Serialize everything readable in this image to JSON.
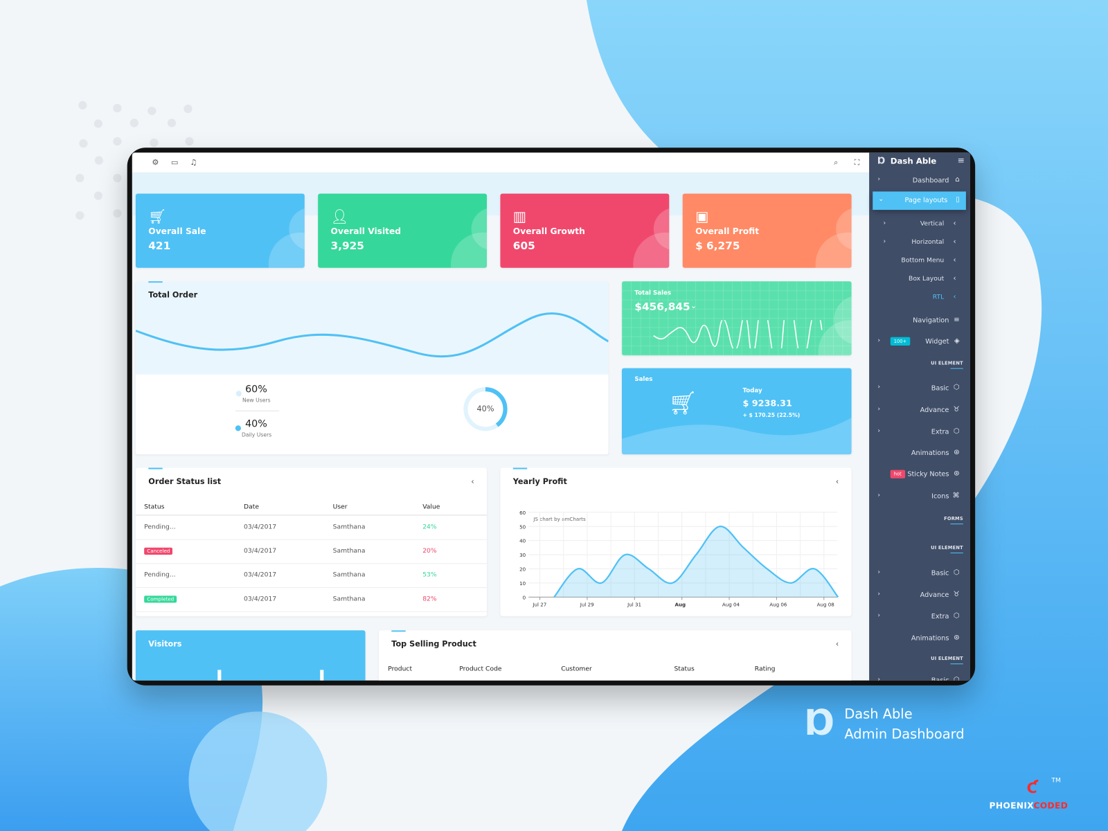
{
  "colors": {
    "blue": "#4fc1f5",
    "green": "#35d89a",
    "red": "#f0486c",
    "orange": "#ff8a65",
    "sidebar": "#3f4d67",
    "green_light": "#5ae0ac"
  },
  "topbar": {
    "left_icons": [
      "gear-icon",
      "message-icon",
      "bell-icon"
    ],
    "right_icons": [
      "search-icon",
      "fullscreen-icon"
    ]
  },
  "stats": [
    {
      "title": "Overall Sale",
      "value": "421",
      "icon": "cart-icon",
      "color": "#4fc1f5"
    },
    {
      "title": "Overall Visited",
      "value": "3,925",
      "icon": "user-icon",
      "color": "#35d89a"
    },
    {
      "title": "Overall Growth",
      "value": "605",
      "icon": "bar-chart-icon",
      "color": "#f0486c"
    },
    {
      "title": "Overall Profit",
      "value": "$ 6,275",
      "icon": "money-icon",
      "color": "#ff8a65"
    }
  ],
  "total_order": {
    "title": "Total Order",
    "new_users": {
      "value": "60%",
      "label": "New Users"
    },
    "daily_users": {
      "value": "40%",
      "label": "Daily Users"
    },
    "donut": {
      "label": "40%",
      "percent": 40
    }
  },
  "total_sales": {
    "title": "Total Sales",
    "value": "$456,845"
  },
  "sales": {
    "title": "Sales",
    "today_label": "Today",
    "today_value": "$ 9238.31",
    "change": "+ $ 170.25 (22.5%)"
  },
  "order_status": {
    "title": "Order Status list",
    "columns": [
      "Status",
      "Date",
      "User",
      "Value"
    ],
    "rows": [
      {
        "status": "Pending...",
        "badge": null,
        "date": "03/4/2017",
        "user": "Samthana",
        "value": "24%",
        "value_color": "#35d89a"
      },
      {
        "status": "Canceled",
        "badge": "#f0486c",
        "date": "03/4/2017",
        "user": "Samthana",
        "value": "20%",
        "value_color": "#f0486c"
      },
      {
        "status": "Pending...",
        "badge": null,
        "date": "03/4/2017",
        "user": "Samthana",
        "value": "53%",
        "value_color": "#35d89a"
      },
      {
        "status": "Completed",
        "badge": "#35d89a",
        "date": "03/4/2017",
        "user": "Samthana",
        "value": "82%",
        "value_color": "#f0486c"
      }
    ]
  },
  "yearly_profit": {
    "title": "Yearly Profit",
    "credit": "JS chart by amCharts"
  },
  "chart_data": {
    "type": "area",
    "title": "Yearly Profit",
    "ylim": [
      0,
      60
    ],
    "yticks": [
      0,
      10,
      20,
      30,
      40,
      50,
      60
    ],
    "xticks": [
      "Jul 27",
      "Jul 29",
      "Jul 31",
      "Aug",
      "Aug 04",
      "Aug 06",
      "Aug 08"
    ],
    "x": [
      "Jul 27",
      "Jul 28",
      "Jul 29",
      "Jul 30",
      "Jul 31",
      "Aug 01",
      "Aug 02",
      "Aug 03",
      "Aug 04",
      "Aug 05",
      "Aug 06",
      "Aug 07",
      "Aug 08"
    ],
    "values": [
      0,
      20,
      10,
      30,
      20,
      10,
      30,
      50,
      35,
      20,
      10,
      20,
      0
    ],
    "grid": true,
    "color": "#4fc1f5"
  },
  "visitors": {
    "title": "Visitors"
  },
  "top_selling": {
    "title": "Top Selling Product",
    "columns": [
      "Product",
      "Product Code",
      "Customer",
      "Status",
      "Rating"
    ]
  },
  "sidebar": {
    "brand": "Dash Able",
    "items": [
      {
        "kind": "item",
        "label": "Dashboard",
        "icon": "home-icon",
        "glyph": "⌂",
        "chev": true
      },
      {
        "kind": "active",
        "label": "Page layouts",
        "icon": "layout-icon",
        "glyph": "▯",
        "chev": true
      },
      {
        "kind": "sub",
        "label": "Vertical",
        "chev": true
      },
      {
        "kind": "sub",
        "label": "Horizontal",
        "chev": true
      },
      {
        "kind": "sub",
        "label": "Bottom Menu"
      },
      {
        "kind": "sub",
        "label": "Box Layout"
      },
      {
        "kind": "sub",
        "label": "RTL",
        "highlight": true
      },
      {
        "kind": "item",
        "label": "Navigation",
        "icon": "menu-icon",
        "glyph": "≡"
      },
      {
        "kind": "item",
        "label": "Widget",
        "icon": "layers-icon",
        "glyph": "◈",
        "chev": true,
        "badge": "100+",
        "badge_color": "#00bcd4"
      },
      {
        "kind": "cap",
        "label": "UI ELEMENT"
      },
      {
        "kind": "item",
        "label": "Basic",
        "icon": "box-icon",
        "glyph": "⬡",
        "chev": true
      },
      {
        "kind": "item",
        "label": "Advance",
        "icon": "gitlab-icon",
        "glyph": "♉",
        "chev": true
      },
      {
        "kind": "item",
        "label": "Extra",
        "icon": "box-icon",
        "glyph": "⬡",
        "chev": true
      },
      {
        "kind": "item",
        "label": "Animations",
        "icon": "aperture-icon",
        "glyph": "⊛"
      },
      {
        "kind": "item",
        "label": "Sticky Notes",
        "icon": "aperture-icon",
        "glyph": "⊛",
        "badge": "hot",
        "badge_color": "#f0486c"
      },
      {
        "kind": "item",
        "label": "Icons",
        "icon": "command-icon",
        "glyph": "⌘",
        "chev": true
      },
      {
        "kind": "cap",
        "label": "FORMS"
      },
      {
        "kind": "cap",
        "label": "UI ELEMENT"
      },
      {
        "kind": "item",
        "label": "Basic",
        "icon": "box-icon",
        "glyph": "⬡",
        "chev": true
      },
      {
        "kind": "item",
        "label": "Advance",
        "icon": "gitlab-icon",
        "glyph": "♉",
        "chev": true
      },
      {
        "kind": "item",
        "label": "Extra",
        "icon": "box-icon",
        "glyph": "⬡",
        "chev": true
      },
      {
        "kind": "item",
        "label": "Animations",
        "icon": "aperture-icon",
        "glyph": "⊛"
      },
      {
        "kind": "cap",
        "label": "UI ELEMENT"
      },
      {
        "kind": "item",
        "label": "Basic",
        "icon": "box-icon",
        "glyph": "⬡",
        "chev": true
      }
    ]
  },
  "branding": {
    "line1": "Dash Able",
    "line2": "Admin Dashboard",
    "company_logo": "PHOENIXCODED",
    "tm": "TM"
  }
}
